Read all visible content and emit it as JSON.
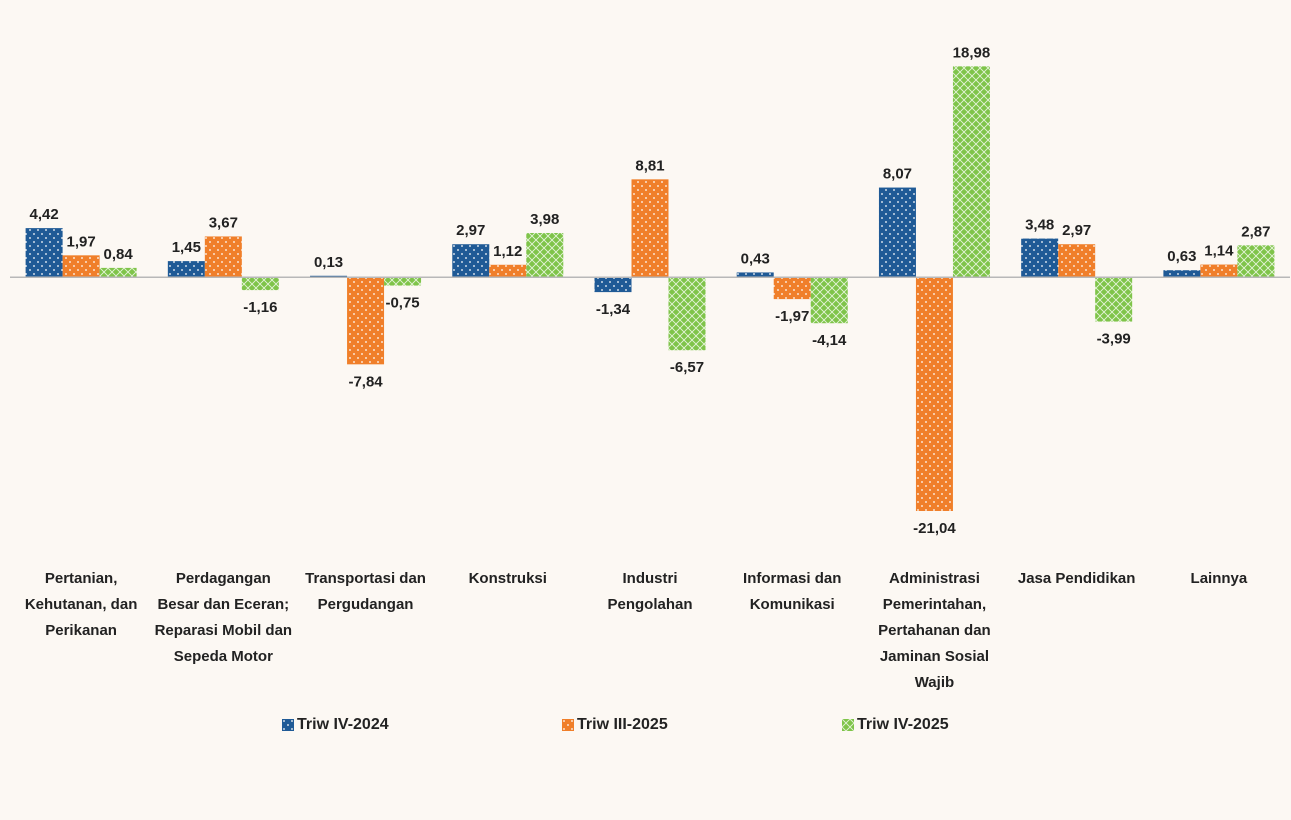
{
  "chart_data": {
    "type": "bar",
    "categories": [
      "Pertanian, Kehutanan, dan Perikanan",
      "Perdagangan Besar dan Eceran; Reparasi Mobil dan Sepeda Motor",
      "Transportasi dan Pergudangan",
      "Konstruksi",
      "Industri Pengolahan",
      "Informasi dan Komunikasi",
      "Administrasi Pemerintahan, Pertahanan dan Jaminan Sosial Wajib",
      "Jasa Pendidikan",
      "Lainnya"
    ],
    "series": [
      {
        "name": "Triw IV-2024",
        "color": "#1f5a96",
        "pattern": "dots",
        "values": [
          4.42,
          1.45,
          0.13,
          2.97,
          -1.34,
          0.43,
          8.07,
          3.48,
          0.63
        ],
        "value_labels": [
          "4,42",
          "1,45",
          "0,13",
          "2,97",
          "-1,34",
          "0,43",
          "8,07",
          "3,48",
          "0,63"
        ]
      },
      {
        "name": "Triw III-2025",
        "color": "#f07f2a",
        "pattern": "dots",
        "values": [
          1.97,
          3.67,
          -7.84,
          1.12,
          8.81,
          -1.97,
          -21.04,
          2.97,
          1.14
        ],
        "value_labels": [
          "1,97",
          "3,67",
          "-7,84",
          "1,12",
          "8,81",
          "-1,97",
          "-21,04",
          "2,97",
          "1,14"
        ]
      },
      {
        "name": "Triw IV-2025",
        "color": "#7fc44a",
        "pattern": "crosshatch",
        "values": [
          0.84,
          -1.16,
          -0.75,
          3.98,
          -6.57,
          -4.14,
          18.98,
          -3.99,
          2.87
        ],
        "value_labels": [
          "0,84",
          "-1,16",
          "-0,75",
          "3,98",
          "-6,57",
          "-4,14",
          "18,98",
          "-3,99",
          "2,87"
        ]
      }
    ],
    "ylim": [
      -25,
      20
    ],
    "legend": "bottom"
  }
}
